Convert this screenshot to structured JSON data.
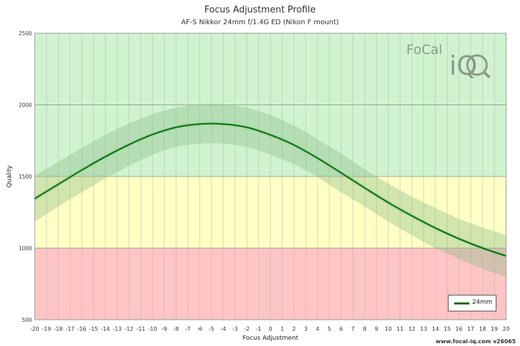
{
  "header": {
    "title": "Focus Adjustment Profile",
    "subtitle": "AF-S Nikkor 24mm f/1.4G ED (Nikon F mount)"
  },
  "footer": {
    "watermark": "www.focal-iq.com  v26065"
  },
  "logo": {
    "text_top": "FoCal",
    "text_bottom": "iQ"
  },
  "colors": {
    "good_zone": "#cff3cf",
    "ok_zone": "#ffffc4",
    "bad_zone": "#ffc4c4",
    "curve": "#0b6b0b",
    "band": "#8cbf8c",
    "grid": "#aaaaaa"
  },
  "chart_data": {
    "type": "line",
    "title": "Focus Adjustment Profile",
    "subtitle": "AF-S Nikkor 24mm f/1.4G ED (Nikon F mount)",
    "xlabel": "Focus Adjustment",
    "ylabel": "Quality",
    "xlim": [
      -20,
      20
    ],
    "ylim": [
      500,
      2500
    ],
    "xticks": [
      -20,
      -19,
      -18,
      -17,
      -16,
      -15,
      -14,
      -13,
      -12,
      -11,
      -10,
      -9,
      -8,
      -7,
      -6,
      -5,
      -4,
      -3,
      -2,
      -1,
      0,
      1,
      2,
      3,
      4,
      5,
      6,
      7,
      8,
      9,
      10,
      11,
      12,
      13,
      14,
      15,
      16,
      17,
      18,
      19,
      20
    ],
    "yticks": [
      500,
      1000,
      1500,
      2000,
      2500
    ],
    "zones": [
      {
        "from": 500,
        "to": 1000,
        "color": "#ffc4c4"
      },
      {
        "from": 1000,
        "to": 1500,
        "color": "#ffffc4"
      },
      {
        "from": 1500,
        "to": 2500,
        "color": "#cff3cf"
      }
    ],
    "legend": {
      "position": "bottom-right",
      "entries": [
        "24mm"
      ]
    },
    "series": [
      {
        "name": "24mm",
        "x": [
          -20,
          -18,
          -16,
          -14,
          -12,
          -10,
          -8,
          -6,
          -4,
          -2,
          0,
          2,
          4,
          6,
          8,
          10,
          12,
          14,
          16,
          18,
          20
        ],
        "y": [
          1345,
          1445,
          1545,
          1638,
          1722,
          1793,
          1843,
          1866,
          1866,
          1843,
          1790,
          1720,
          1628,
          1525,
          1420,
          1318,
          1225,
          1140,
          1065,
          1000,
          945
        ],
        "upper": [
          1505,
          1600,
          1700,
          1790,
          1870,
          1935,
          1980,
          2003,
          2003,
          1980,
          1928,
          1855,
          1760,
          1660,
          1550,
          1450,
          1360,
          1280,
          1205,
          1145,
          1090
        ],
        "lower": [
          1185,
          1290,
          1390,
          1486,
          1574,
          1651,
          1706,
          1729,
          1729,
          1706,
          1652,
          1585,
          1496,
          1390,
          1290,
          1186,
          1090,
          1000,
          925,
          855,
          800
        ]
      }
    ]
  }
}
